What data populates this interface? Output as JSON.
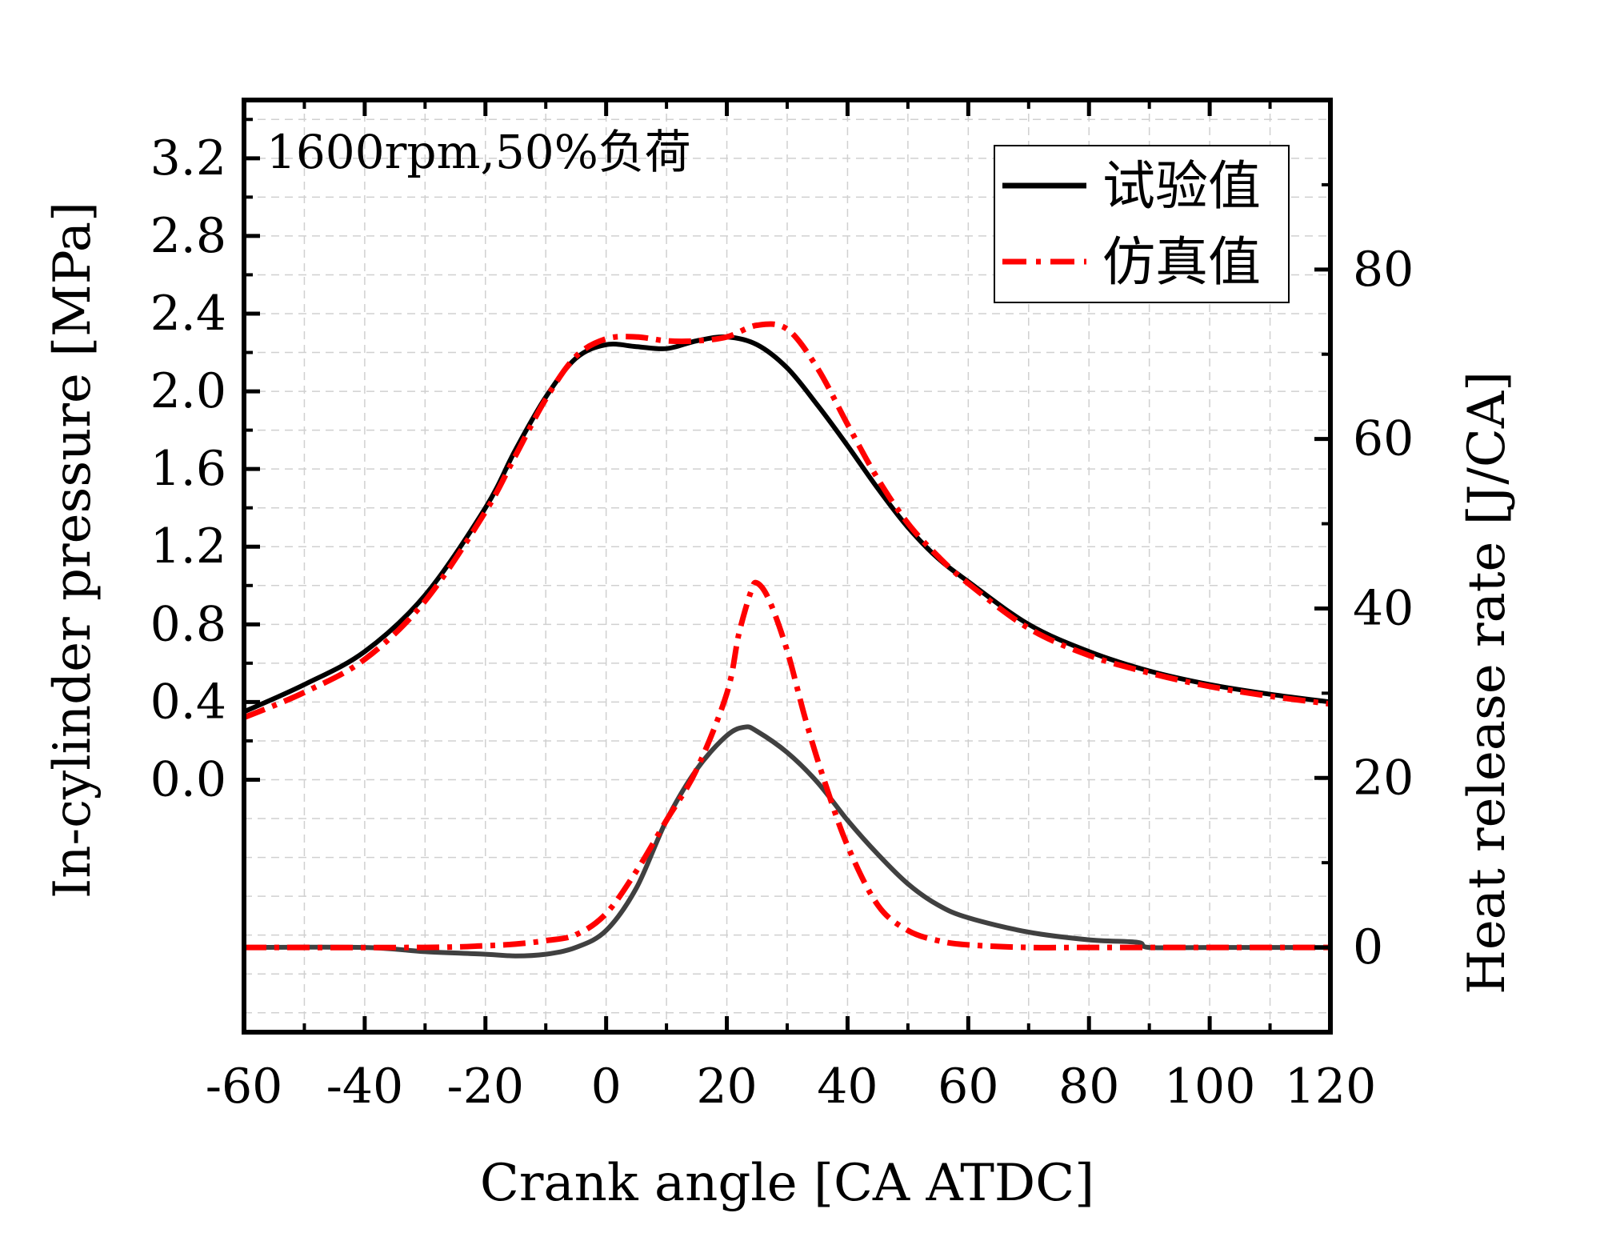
{
  "chart_data": {
    "type": "line",
    "annotation": "1600rpm,50%负荷",
    "xlabel": "Crank angle [CA ATDC]",
    "ylabel_left": "In-cylinder pressure [MPa]",
    "ylabel_right": "Heat release rate [J/CA]",
    "xlim": [
      -60,
      120
    ],
    "ylim_left": [
      -1.3,
      3.5
    ],
    "ylim_right": [
      -10,
      100
    ],
    "x_ticks": [
      -60,
      -40,
      -20,
      0,
      20,
      40,
      60,
      80,
      100,
      120
    ],
    "x_tick_labels": [
      "-60",
      "-40",
      "-20",
      "0",
      "20",
      "40",
      "60",
      "80",
      "100",
      "120"
    ],
    "y_left_ticks": [
      0.0,
      0.4,
      0.8,
      1.2,
      1.6,
      2.0,
      2.4,
      2.8,
      3.2
    ],
    "y_left_tick_labels": [
      "0.0",
      "0.4",
      "0.8",
      "1.2",
      "1.6",
      "2.0",
      "2.4",
      "2.8",
      "3.2"
    ],
    "y_right_ticks": [
      0,
      20,
      40,
      60,
      80
    ],
    "y_right_tick_labels": [
      "0",
      "20",
      "40",
      "60",
      "80"
    ],
    "grid": true,
    "legend": {
      "position": "top-right",
      "entries": [
        {
          "label": "试验值",
          "color": "#000000",
          "style": "solid"
        },
        {
          "label": "仿真值",
          "color": "#ff0000",
          "style": "dash-dot"
        }
      ]
    },
    "series": [
      {
        "name": "试验值 pressure",
        "axis": "left",
        "color": "#000000",
        "style": "solid",
        "x": [
          -60,
          -50,
          -40,
          -30,
          -20,
          -15,
          -10,
          -5,
          0,
          5,
          10,
          15,
          20,
          25,
          30,
          35,
          40,
          45,
          50,
          55,
          60,
          70,
          80,
          90,
          100,
          110,
          120
        ],
        "y": [
          0.35,
          0.49,
          0.66,
          0.95,
          1.4,
          1.7,
          1.97,
          2.17,
          2.24,
          2.23,
          2.22,
          2.26,
          2.28,
          2.24,
          2.12,
          1.93,
          1.72,
          1.5,
          1.3,
          1.14,
          1.02,
          0.8,
          0.66,
          0.56,
          0.49,
          0.44,
          0.4
        ]
      },
      {
        "name": "仿真值 pressure",
        "axis": "left",
        "color": "#ff0000",
        "style": "dash-dot",
        "x": [
          -60,
          -50,
          -40,
          -30,
          -20,
          -15,
          -10,
          -5,
          0,
          5,
          10,
          15,
          20,
          25,
          30,
          35,
          40,
          45,
          50,
          55,
          60,
          70,
          80,
          90,
          100,
          110,
          120
        ],
        "y": [
          0.32,
          0.45,
          0.62,
          0.92,
          1.38,
          1.67,
          1.96,
          2.18,
          2.27,
          2.28,
          2.26,
          2.26,
          2.28,
          2.34,
          2.32,
          2.12,
          1.83,
          1.55,
          1.32,
          1.15,
          1.01,
          0.78,
          0.64,
          0.55,
          0.48,
          0.43,
          0.39
        ]
      },
      {
        "name": "试验值 heat release rate",
        "axis": "right",
        "color": "#404040",
        "style": "solid",
        "x": [
          -60,
          -40,
          -30,
          -20,
          -15,
          -10,
          -5,
          0,
          5,
          10,
          15,
          20,
          23,
          25,
          30,
          35,
          40,
          45,
          50,
          55,
          60,
          70,
          80,
          88,
          90,
          100,
          120
        ],
        "y": [
          0,
          0,
          -0.5,
          -0.8,
          -1.0,
          -0.8,
          0,
          2,
          7,
          15,
          21,
          25,
          26,
          25.5,
          23,
          19.5,
          15,
          11,
          7.5,
          5,
          3.5,
          1.8,
          0.9,
          0.6,
          0,
          0,
          0
        ]
      },
      {
        "name": "仿真值 heat release rate",
        "axis": "right",
        "color": "#ff0000",
        "style": "dash-dot",
        "x": [
          -60,
          -30,
          -20,
          -15,
          -10,
          -5,
          0,
          5,
          10,
          15,
          20,
          22,
          24,
          25,
          27,
          30,
          33,
          36,
          40,
          45,
          50,
          55,
          60,
          70,
          80,
          90,
          120
        ],
        "y": [
          0,
          0,
          0.2,
          0.4,
          0.8,
          1.5,
          4,
          9,
          15,
          21,
          30,
          37,
          42,
          43,
          41,
          35,
          27,
          20,
          12,
          5,
          2,
          0.8,
          0.3,
          0,
          0,
          0,
          0
        ]
      }
    ]
  }
}
